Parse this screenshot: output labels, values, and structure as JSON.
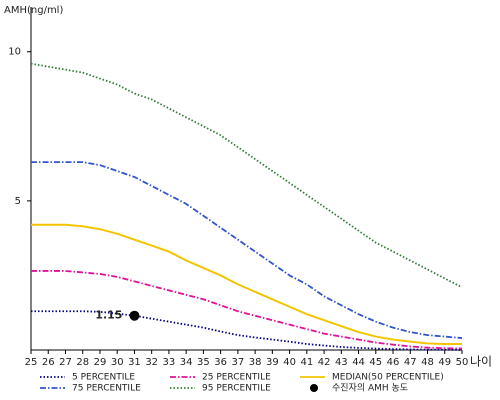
{
  "chart_data": {
    "type": "line",
    "y_label": "AMH(ng/ml)",
    "x_label": "나이",
    "x": [
      25,
      26,
      27,
      28,
      29,
      30,
      31,
      32,
      33,
      34,
      35,
      36,
      37,
      38,
      39,
      40,
      41,
      42,
      43,
      44,
      45,
      46,
      47,
      48,
      49,
      50
    ],
    "xlim": [
      25,
      50
    ],
    "xticks": [
      25,
      26,
      27,
      28,
      29,
      30,
      31,
      32,
      33,
      34,
      35,
      36,
      37,
      38,
      39,
      40,
      41,
      42,
      43,
      44,
      45,
      46,
      47,
      48,
      49,
      50
    ],
    "ylim": [
      0,
      11.5
    ],
    "yticks": [
      5,
      10
    ],
    "series": [
      {
        "name": "5 PERCENTILE",
        "color": "#000080",
        "style": "dotted",
        "values": [
          1.3,
          1.3,
          1.3,
          1.3,
          1.28,
          1.22,
          1.15,
          1.05,
          0.95,
          0.85,
          0.75,
          0.62,
          0.5,
          0.42,
          0.35,
          0.28,
          0.2,
          0.15,
          0.1,
          0.07,
          0.05,
          0.03,
          0.02,
          0.01,
          0.01,
          0
        ]
      },
      {
        "name": "25 PERCENTILE",
        "color": "#e0109a",
        "style": "dashdot",
        "values": [
          2.65,
          2.65,
          2.65,
          2.6,
          2.55,
          2.45,
          2.3,
          2.15,
          2.0,
          1.85,
          1.7,
          1.5,
          1.3,
          1.15,
          1.0,
          0.85,
          0.7,
          0.55,
          0.45,
          0.35,
          0.25,
          0.18,
          0.12,
          0.08,
          0.06,
          0.05
        ]
      },
      {
        "name": "MEDIAN(50 PERCENTILE)",
        "color": "#f5c400",
        "style": "solid",
        "values": [
          4.2,
          4.2,
          4.2,
          4.15,
          4.05,
          3.9,
          3.7,
          3.5,
          3.3,
          3.0,
          2.75,
          2.5,
          2.2,
          1.95,
          1.7,
          1.45,
          1.2,
          1.0,
          0.8,
          0.6,
          0.45,
          0.35,
          0.28,
          0.22,
          0.2,
          0.2
        ]
      },
      {
        "name": "75 PERCENTILE",
        "color": "#3355cc",
        "style": "dashdot",
        "values": [
          6.3,
          6.3,
          6.3,
          6.3,
          6.2,
          6.0,
          5.8,
          5.5,
          5.2,
          4.9,
          4.5,
          4.1,
          3.7,
          3.3,
          2.9,
          2.5,
          2.2,
          1.8,
          1.5,
          1.2,
          0.95,
          0.75,
          0.6,
          0.5,
          0.45,
          0.4
        ]
      },
      {
        "name": "95 PERCENTILE",
        "color": "#2e7d32",
        "style": "dotted",
        "values": [
          9.6,
          9.5,
          9.4,
          9.3,
          9.1,
          8.9,
          8.6,
          8.4,
          8.1,
          7.8,
          7.5,
          7.2,
          6.8,
          6.4,
          6.0,
          5.6,
          5.2,
          4.8,
          4.4,
          4.0,
          3.6,
          3.3,
          3.0,
          2.7,
          2.4,
          2.1
        ]
      }
    ],
    "points": [
      {
        "name": "수진자의 AMH 농도",
        "color": "#000000",
        "x": 31,
        "y": 1.15
      }
    ]
  }
}
